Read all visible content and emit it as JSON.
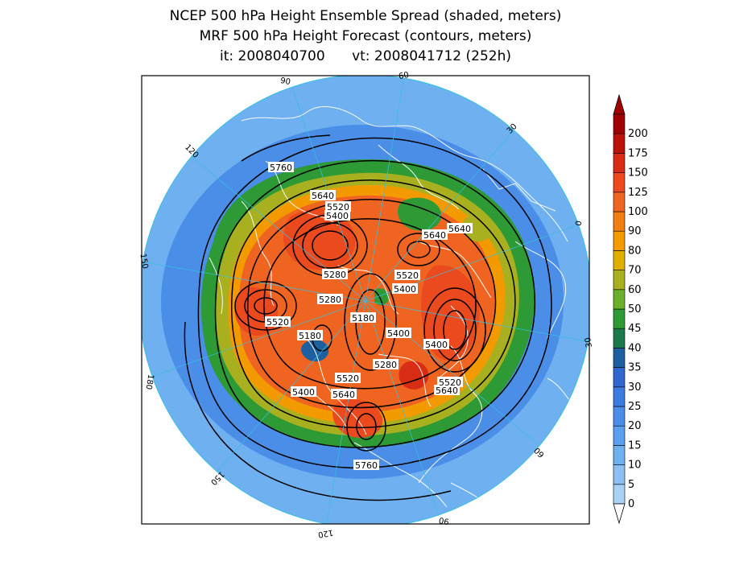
{
  "titles": {
    "line1": "NCEP 500 hPa Height Ensemble Spread (shaded, meters)",
    "line2": "MRF 500 hPa Height Forecast (contours, meters)",
    "init": "it: 2008040700",
    "valid": "vt: 2008041712 (252h)"
  },
  "colorbar": {
    "levels": [
      "0",
      "5",
      "10",
      "15",
      "20",
      "25",
      "30",
      "35",
      "40",
      "45",
      "50",
      "60",
      "70",
      "80",
      "90",
      "100",
      "125",
      "150",
      "175",
      "200"
    ],
    "colors": [
      "#a9d0f5",
      "#8cc0f5",
      "#6fb0f0",
      "#5aa0ef",
      "#4a8ee8",
      "#3b7ce0",
      "#2f68cf",
      "#1e5fa0",
      "#1c7a4a",
      "#2e9a35",
      "#6ab02a",
      "#a8b020",
      "#e0b000",
      "#f29a00",
      "#f07e10",
      "#ef6420",
      "#ea4a1e",
      "#d82c14",
      "#bc1208",
      "#a00000"
    ]
  },
  "longitude_labels": [
    "60",
    "30",
    "0",
    "30",
    "60",
    "90",
    "120",
    "150",
    "180",
    "150",
    "120",
    "90"
  ],
  "contour_labels": [
    "5760",
    "5640",
    "5520",
    "5400",
    "5640",
    "5640",
    "5280",
    "5520",
    "5400",
    "5280",
    "5180",
    "5520",
    "5180",
    "5400",
    "5400",
    "5280",
    "5520",
    "5640",
    "5400",
    "5520",
    "5640",
    "5760"
  ],
  "map": {
    "projection": "north polar stereographic",
    "coastline_color": "#ffffff",
    "contour_color": "#000000"
  }
}
